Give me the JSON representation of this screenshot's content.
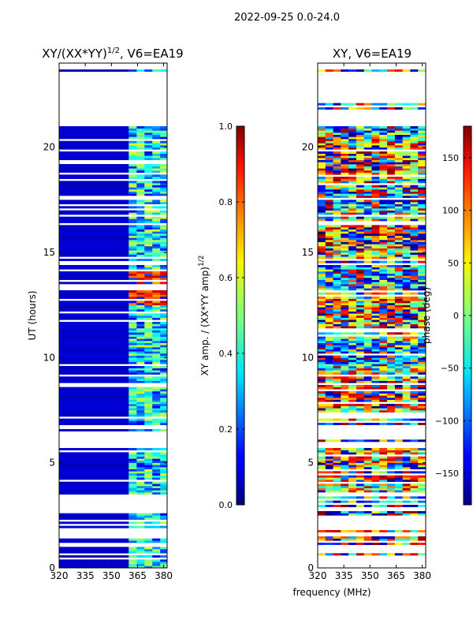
{
  "suptitle": "2022-09-25 0.0-24.0",
  "shared_xlabel": "frequency (MHz)",
  "chart_data": [
    {
      "type": "heatmap",
      "title": "XY/(XX*YY)",
      "title_exponent": "1/2",
      "title_suffix": ", V6=EA19",
      "xlabel": "",
      "ylabel": "UT (hours)",
      "xlim": [
        320,
        382
      ],
      "ylim": [
        0,
        24
      ],
      "xticks": [
        320,
        335,
        350,
        365,
        380
      ],
      "yticks": [
        0,
        5,
        10,
        15,
        20
      ],
      "colormap": "jet",
      "colorbar": {
        "label": "XY amp. / (XX*YY amp)",
        "label_exponent": "1/2",
        "range": [
          0.0,
          1.0
        ],
        "ticks": [
          "0.0",
          "0.2",
          "0.4",
          "0.6",
          "0.8",
          "1.0"
        ],
        "tick_values": [
          0.0,
          0.2,
          0.4,
          0.6,
          0.8,
          1.0
        ]
      },
      "data_description": "Mostly low amplitude (~0.05) below 360 MHz; 360-382 MHz channels show moderate amplitudes (0.2-0.6) with peaks (~0.9) near 12.5-14 UT"
    },
    {
      "type": "heatmap",
      "title": "XY, V6=EA19",
      "xlabel": "",
      "ylabel": "",
      "xlim": [
        320,
        382
      ],
      "ylim": [
        0,
        24
      ],
      "xticks": [
        320,
        335,
        350,
        365,
        380
      ],
      "yticks": [
        0,
        5,
        10,
        15,
        20
      ],
      "colormap": "jet",
      "colorbar": {
        "label": "phase (deg)",
        "range": [
          -180,
          180
        ],
        "ticks": [
          "−150",
          "−100",
          "−50",
          "0",
          "50",
          "100",
          "150"
        ],
        "tick_values": [
          -150,
          -100,
          -50,
          0,
          50,
          100,
          150
        ]
      },
      "data_description": "Noisy phases spanning -180 to 180 deg; dense data 3.5-5.5 UT and 7-20 UT"
    }
  ]
}
